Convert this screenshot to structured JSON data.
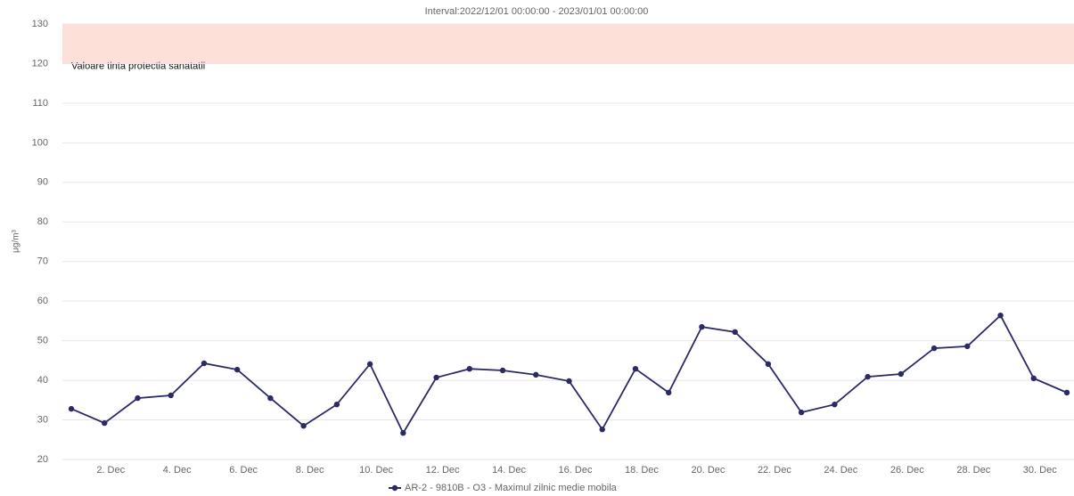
{
  "chart_data": {
    "type": "line",
    "title": "Interval:2022/12/01 00:00:00 - 2023/01/01 00:00:00",
    "y_label": "μg/m³",
    "categories": [
      null,
      "2. Dec",
      null,
      "4. Dec",
      null,
      "6. Dec",
      null,
      "8. Dec",
      null,
      "10. Dec",
      null,
      "12. Dec",
      null,
      "14. Dec",
      null,
      "16. Dec",
      null,
      "18. Dec",
      null,
      "20. Dec",
      null,
      "22. Dec",
      null,
      "24. Dec",
      null,
      "26. Dec",
      null,
      "28. Dec",
      null,
      "30. Dec",
      null
    ],
    "series": [
      {
        "name": "AR-2 - 9810B - O3 - Maximul zilnic medie mobila",
        "color": "#2b2a66",
        "values": [
          32.8,
          29.2,
          35.5,
          36.2,
          44.3,
          42.7,
          35.5,
          28.5,
          33.9,
          44.1,
          26.7,
          40.7,
          42.9,
          42.5,
          41.4,
          39.8,
          27.6,
          42.9,
          36.9,
          53.5,
          52.2,
          44.1,
          31.9,
          33.9,
          40.9,
          41.6,
          48.1,
          48.6,
          56.4,
          40.5,
          36.9
        ]
      }
    ],
    "plot_bands": [
      {
        "from": 120,
        "to": 130,
        "label": "Valoare tinta protectia sanatatii",
        "color": "#fde1d8"
      }
    ],
    "ylim": [
      20,
      130
    ],
    "yticks": [
      20,
      30,
      40,
      50,
      60,
      70,
      80,
      90,
      100,
      110,
      120,
      130
    ],
    "grid": true,
    "legend": "bottom"
  }
}
